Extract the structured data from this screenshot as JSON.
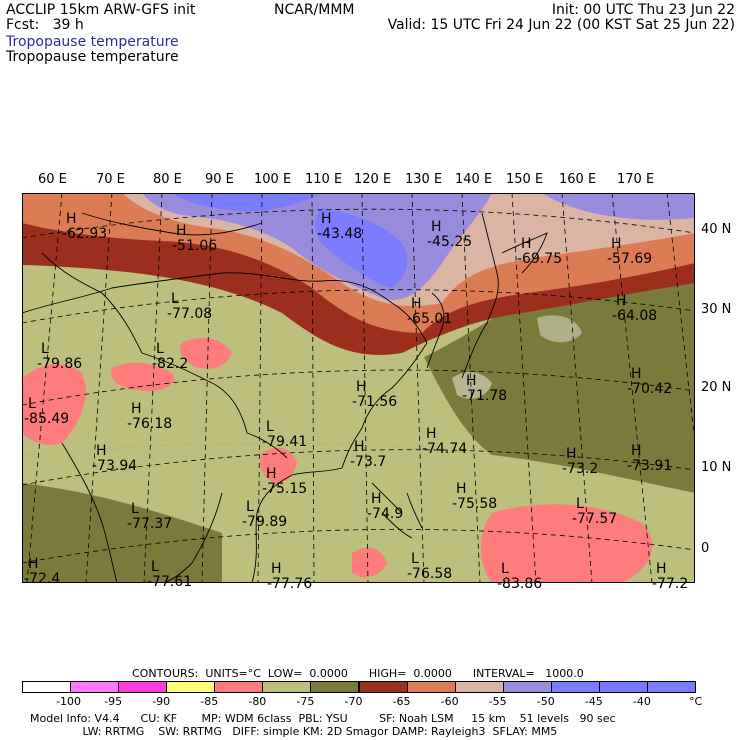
{
  "header": {
    "left1": "ACCLIP 15km ARW-GFS init",
    "left2": "Fcst:   39 h",
    "center": "NCAR/MMM",
    "right1": "Init: 00 UTC Thu 23 Jun 22",
    "right2": "Valid: 15 UTC Fri 24 Jun 22 (00 KST Sat 25 Jun 22)",
    "field1": "Tropopause temperature",
    "field2": "Tropopause temperature"
  },
  "lon_labels": [
    "60 E",
    "70 E",
    "80 E",
    "90 E",
    "100 E",
    "110 E",
    "120 E",
    "130 E",
    "140 E",
    "150 E",
    "160 E",
    "170 E"
  ],
  "lat_labels": [
    "40 N",
    "30 N",
    "20 N",
    "10 N",
    "0"
  ],
  "hl_labels": [
    {
      "mark": "H",
      "value": "-62.93"
    },
    {
      "mark": "H",
      "value": "-51.06"
    },
    {
      "mark": "H",
      "value": "-43.48"
    },
    {
      "mark": "H",
      "value": "-45.25"
    },
    {
      "mark": "H",
      "value": "-69.75"
    },
    {
      "mark": "H",
      "value": "-57.69"
    },
    {
      "mark": "L",
      "value": "-77.08"
    },
    {
      "mark": "H",
      "value": "-65.01"
    },
    {
      "mark": "H",
      "value": "-64.08"
    },
    {
      "mark": "L",
      "value": "-79.86"
    },
    {
      "mark": "L",
      "value": "-82.2"
    },
    {
      "mark": "H",
      "value": "-71.56"
    },
    {
      "mark": "H",
      "value": "-71.78"
    },
    {
      "mark": "H",
      "value": "-70.42"
    },
    {
      "mark": "L",
      "value": "-85.49"
    },
    {
      "mark": "H",
      "value": "-76.18"
    },
    {
      "mark": "L",
      "value": "-79.41"
    },
    {
      "mark": "H",
      "value": "-73.7"
    },
    {
      "mark": "H",
      "value": "-74.74"
    },
    {
      "mark": "H",
      "value": "-73.2"
    },
    {
      "mark": "H",
      "value": "-73.91"
    },
    {
      "mark": "H",
      "value": "-73.94"
    },
    {
      "mark": "H",
      "value": "-75.15"
    },
    {
      "mark": "H",
      "value": "-75.58"
    },
    {
      "mark": "L",
      "value": "-77.37"
    },
    {
      "mark": "L",
      "value": "-79.89"
    },
    {
      "mark": "H",
      "value": "-74.9"
    },
    {
      "mark": "L",
      "value": "-77.57"
    },
    {
      "mark": "H",
      "value": "-72.4"
    },
    {
      "mark": "L",
      "value": "-77.61"
    },
    {
      "mark": "H",
      "value": "-77.76"
    },
    {
      "mark": "L",
      "value": "-76.58"
    },
    {
      "mark": "L",
      "value": "-83.86"
    },
    {
      "mark": "H",
      "value": "-77.2"
    }
  ],
  "contour_info": "CONTOURS:  UNITS=°C  LOW=  0.0000      HIGH=  0.0000      INTERVAL=   1000.0",
  "colorbar": {
    "colors": [
      "#ffffff",
      "#ff78ff",
      "#ff3cdc",
      "#ffff78",
      "#ff7c7c",
      "#bcc07c",
      "#7a7a3a",
      "#9b2e1c",
      "#dc7c54",
      "#dcb4a4",
      "#9a8cdc",
      "#7c7cff",
      "#7878ff",
      "#7c7cff"
    ],
    "labels": [
      "-100",
      "-95",
      "-90",
      "-85",
      "-80",
      "-75",
      "-70",
      "-65",
      "-60",
      "-55",
      "-50",
      "-45",
      "-40"
    ],
    "unit": "°C"
  },
  "footer": {
    "line1": "Model Info: V4.4      CU: KF       MP: WDM 6class  PBL: YSU         SF: Noah LSM     15 km    51 levels   90 sec",
    "line2": "               LW: RRTMG    SW: RRTMG   DIFF: simple KM: 2D Smagor DAMP: Rayleigh3  SFLAY: MM5"
  }
}
